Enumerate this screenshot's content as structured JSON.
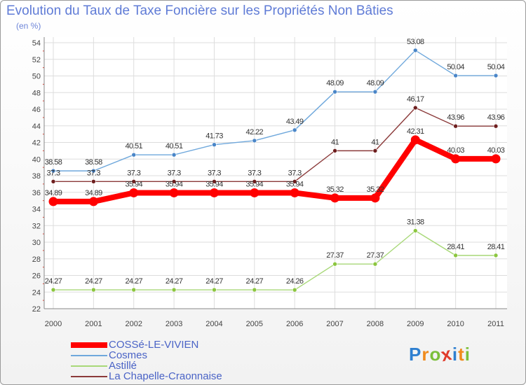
{
  "chart_data": {
    "type": "line",
    "title": "Evolution du Taux de Taxe Foncière sur les Propriétés Non Bâties",
    "subtitle": "(en %)",
    "xlabel": "",
    "ylabel": "",
    "categories": [
      "2000",
      "2001",
      "2002",
      "2003",
      "2004",
      "2005",
      "2006",
      "2007",
      "2008",
      "2009",
      "2010",
      "2011"
    ],
    "ylim": [
      22,
      54
    ],
    "yticks": [
      22,
      24,
      26,
      28,
      30,
      32,
      34,
      36,
      38,
      40,
      42,
      44,
      46,
      48,
      50,
      52,
      54
    ],
    "grid": true,
    "legend_position": "bottom-left",
    "series": [
      {
        "name": "COSSé-LE-VIVIEN",
        "color": "#ff0000",
        "marker_color": "#ff0000",
        "values": [
          34.89,
          34.89,
          35.94,
          35.94,
          35.94,
          35.94,
          35.94,
          35.32,
          35.32,
          42.31,
          40.03,
          40.03
        ],
        "labels": [
          "34.89",
          "34.89",
          "35.94",
          "35.94",
          "35.94",
          "35.94",
          "35.94",
          "35.32",
          "35.32",
          "42.31",
          "40.03",
          "40.03"
        ]
      },
      {
        "name": "Cosmes",
        "color": "#6fa8dc",
        "marker_color": "#4a86c8",
        "values": [
          38.58,
          38.58,
          40.51,
          40.51,
          41.73,
          42.22,
          43.49,
          48.09,
          48.09,
          53.08,
          50.04,
          50.04
        ],
        "labels": [
          "38.58",
          "38.58",
          "40.51",
          "40.51",
          "41.73",
          "42.22",
          "43.49",
          "48.09",
          "48.09",
          "53.08",
          "50.04",
          "50.04"
        ]
      },
      {
        "name": "Astillé",
        "color": "#a8d878",
        "marker_color": "#8cc63f",
        "values": [
          24.27,
          24.27,
          24.27,
          24.27,
          24.27,
          24.27,
          24.26,
          27.37,
          27.37,
          31.38,
          28.41,
          28.41
        ],
        "labels": [
          "24.27",
          "24.27",
          "24.27",
          "24.27",
          "24.27",
          "24.27",
          "24.26",
          "27.37",
          "27.37",
          "31.38",
          "28.41",
          "28.41"
        ]
      },
      {
        "name": "La Chapelle-Craonnaise",
        "color": "#8b3a3a",
        "marker_color": "#6e1f1f",
        "values": [
          37.3,
          37.3,
          37.3,
          37.3,
          37.3,
          37.3,
          37.3,
          41,
          41,
          46.17,
          43.96,
          43.96
        ],
        "labels": [
          "37.3",
          "37.3",
          "37.3",
          "37.3",
          "37.3",
          "37.3",
          "37.3",
          "41",
          "41",
          "46.17",
          "43.96",
          "43.96"
        ]
      }
    ]
  },
  "logo": {
    "letters": [
      "P",
      "r",
      "o",
      "x",
      "i",
      "t",
      "i"
    ],
    "colors": [
      "#2e7fd0",
      "#f08a1c",
      "#7bbf3a",
      "#e03a2a",
      "#2e7fd0",
      "#f08a1c",
      "#7bbf3a"
    ]
  }
}
